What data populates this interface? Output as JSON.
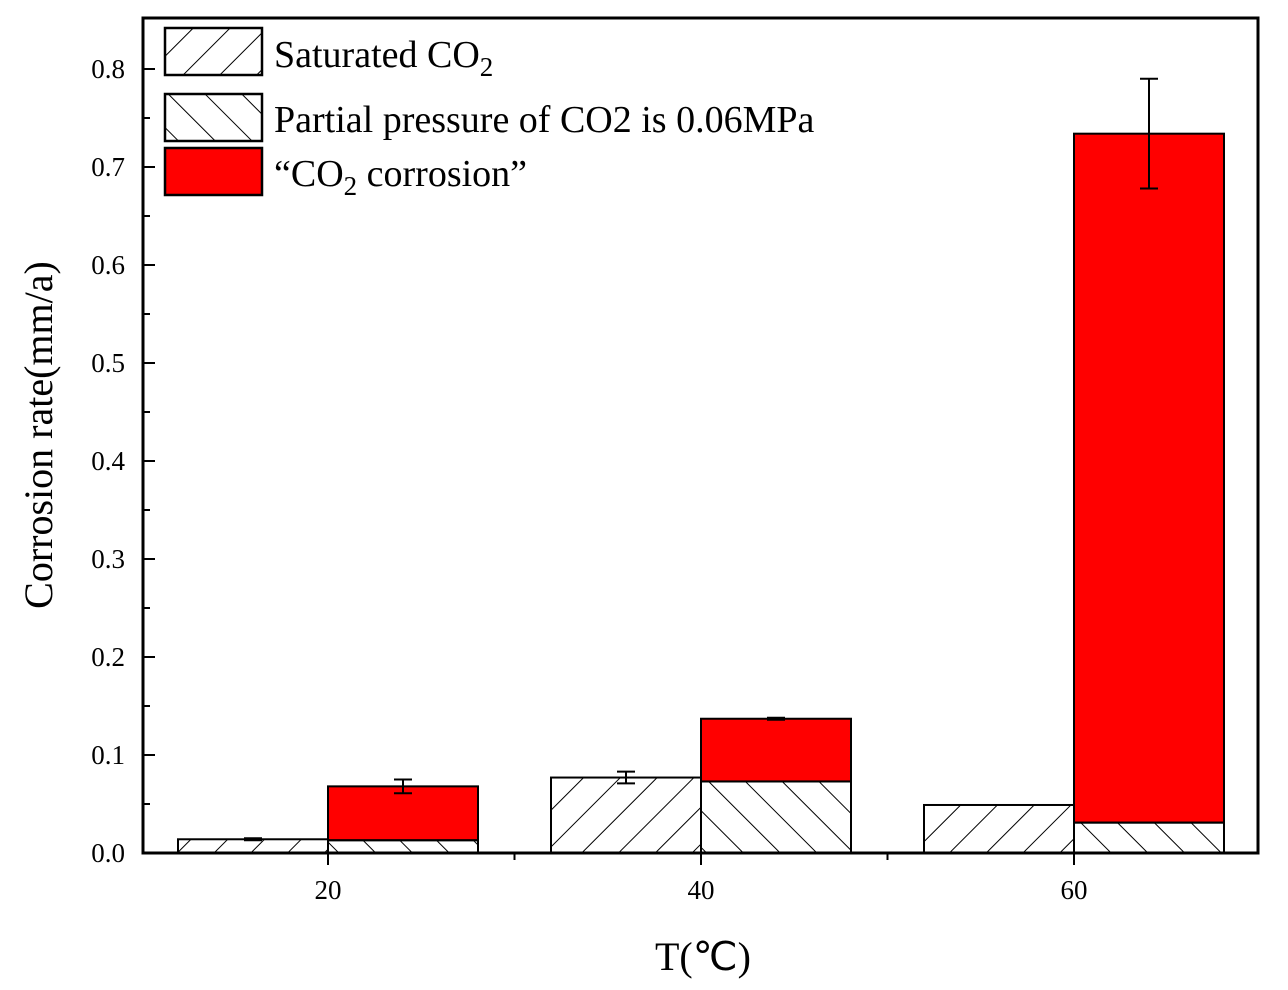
{
  "chart_data": {
    "type": "bar",
    "title": "",
    "xlabel": "T(℃)",
    "ylabel": "Corrosion rate(mm/a)",
    "ylim": [
      0,
      0.85
    ],
    "y_ticks": [
      "0.0",
      "0.1",
      "0.2",
      "0.3",
      "0.4",
      "0.5",
      "0.6",
      "0.7",
      "0.8"
    ],
    "categories": [
      "20",
      "40",
      "60"
    ],
    "legend_position": "top-left",
    "legend": [
      {
        "text": "Saturated CO",
        "sub": "2",
        "after": "",
        "pattern": "hatch-forward"
      },
      {
        "text": "Partial pressure of CO2 is 0.06MPa",
        "sub": "",
        "after": "",
        "pattern": "hatch-back"
      },
      {
        "text": "“CO",
        "sub": "2",
        "after": " corrosion”",
        "pattern": "solid-red"
      }
    ],
    "series": [
      {
        "name": "Saturated CO2",
        "values": [
          0.014,
          0.077,
          0.049
        ],
        "errors": [
          0.001,
          0.006,
          0.0
        ]
      },
      {
        "name": "Partial pressure of CO2 is 0.06MPa",
        "values": [
          0.013,
          0.073,
          0.031
        ],
        "errors": [
          0.0,
          0.0,
          0.0
        ]
      },
      {
        "name": "“CO2 corrosion”",
        "stack_on": "Partial pressure of CO2 is 0.06MPa",
        "totals": [
          0.068,
          0.137,
          0.734
        ],
        "errors": [
          0.007,
          0.001,
          0.056
        ]
      }
    ],
    "colors": {
      "red": "#ff0000",
      "line": "#000000"
    }
  }
}
